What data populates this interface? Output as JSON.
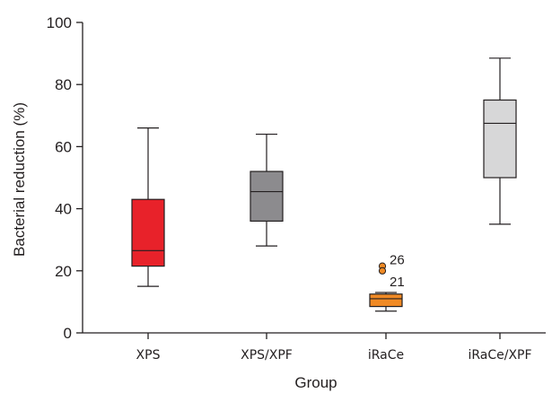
{
  "chart_data": {
    "type": "box",
    "xlabel": "Group",
    "ylabel": "Bacterial reduction (%)",
    "ylim": [
      0,
      100
    ],
    "yticks": [
      0,
      20,
      40,
      60,
      80,
      100
    ],
    "grid": false,
    "categories": [
      "XPS",
      "XPS/XPF",
      "iRaCe",
      "iRaCe/XPF"
    ],
    "boxes": [
      {
        "category": "XPS",
        "min": 15,
        "q1": 21.5,
        "median": 26.5,
        "q3": 43,
        "max": 66,
        "color": "#e8222a",
        "outliers": []
      },
      {
        "category": "XPS/XPF",
        "min": 28,
        "q1": 36,
        "median": 45.5,
        "q3": 52,
        "max": 64,
        "color": "#8c8b8e",
        "outliers": []
      },
      {
        "category": "iRaCe",
        "min": 7,
        "q1": 8.5,
        "median": 11,
        "q3": 12.5,
        "max": 13,
        "color": "#f08a25",
        "outliers": [
          {
            "value": 21.5,
            "label": "26"
          },
          {
            "value": 20,
            "label": "21"
          }
        ]
      },
      {
        "category": "iRaCe/XPF",
        "min": 35,
        "q1": 50,
        "median": 67.5,
        "q3": 75,
        "max": 88.5,
        "color": "#d7d7d8",
        "outliers": []
      }
    ]
  }
}
